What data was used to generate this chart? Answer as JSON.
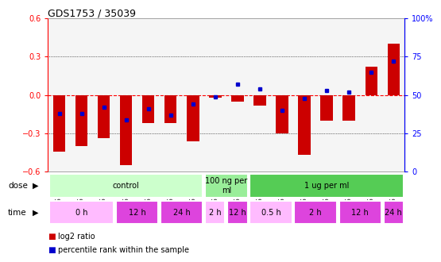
{
  "title": "GDS1753 / 35039",
  "samples": [
    "GSM93635",
    "GSM93638",
    "GSM93649",
    "GSM93641",
    "GSM93644",
    "GSM93645",
    "GSM93650",
    "GSM93646",
    "GSM93648",
    "GSM93642",
    "GSM93643",
    "GSM93639",
    "GSM93647",
    "GSM93637",
    "GSM93640",
    "GSM93636"
  ],
  "log2_ratio": [
    -0.44,
    -0.4,
    -0.34,
    -0.55,
    -0.22,
    -0.22,
    -0.36,
    -0.02,
    -0.05,
    -0.08,
    -0.3,
    -0.47,
    -0.2,
    -0.2,
    0.22,
    0.4
  ],
  "percentile_rank": [
    38,
    38,
    42,
    34,
    41,
    37,
    44,
    49,
    57,
    54,
    40,
    48,
    53,
    52,
    65,
    72
  ],
  "ylim_left": [
    -0.6,
    0.6
  ],
  "ylim_right": [
    0,
    100
  ],
  "bar_color": "#cc0000",
  "dot_color": "#0000cc",
  "dose_groups": [
    {
      "label": "control",
      "start": 0,
      "end": 7,
      "color": "#ccffcc"
    },
    {
      "label": "100 ng per\nml",
      "start": 7,
      "end": 9,
      "color": "#99ee99"
    },
    {
      "label": "1 ug per ml",
      "start": 9,
      "end": 16,
      "color": "#55cc55"
    }
  ],
  "time_groups": [
    {
      "label": "0 h",
      "start": 0,
      "end": 3,
      "color": "#ffbbff"
    },
    {
      "label": "12 h",
      "start": 3,
      "end": 5,
      "color": "#dd44dd"
    },
    {
      "label": "24 h",
      "start": 5,
      "end": 7,
      "color": "#dd44dd"
    },
    {
      "label": "2 h",
      "start": 7,
      "end": 8,
      "color": "#ffbbff"
    },
    {
      "label": "12 h",
      "start": 8,
      "end": 9,
      "color": "#dd44dd"
    },
    {
      "label": "0.5 h",
      "start": 9,
      "end": 11,
      "color": "#ffbbff"
    },
    {
      "label": "2 h",
      "start": 11,
      "end": 13,
      "color": "#dd44dd"
    },
    {
      "label": "12 h",
      "start": 13,
      "end": 15,
      "color": "#dd44dd"
    },
    {
      "label": "24 h",
      "start": 15,
      "end": 16,
      "color": "#dd44dd"
    }
  ],
  "legend_items": [
    {
      "label": "log2 ratio",
      "color": "#cc0000"
    },
    {
      "label": "percentile rank within the sample",
      "color": "#0000cc"
    }
  ],
  "bg_color": "#f0f0f0"
}
